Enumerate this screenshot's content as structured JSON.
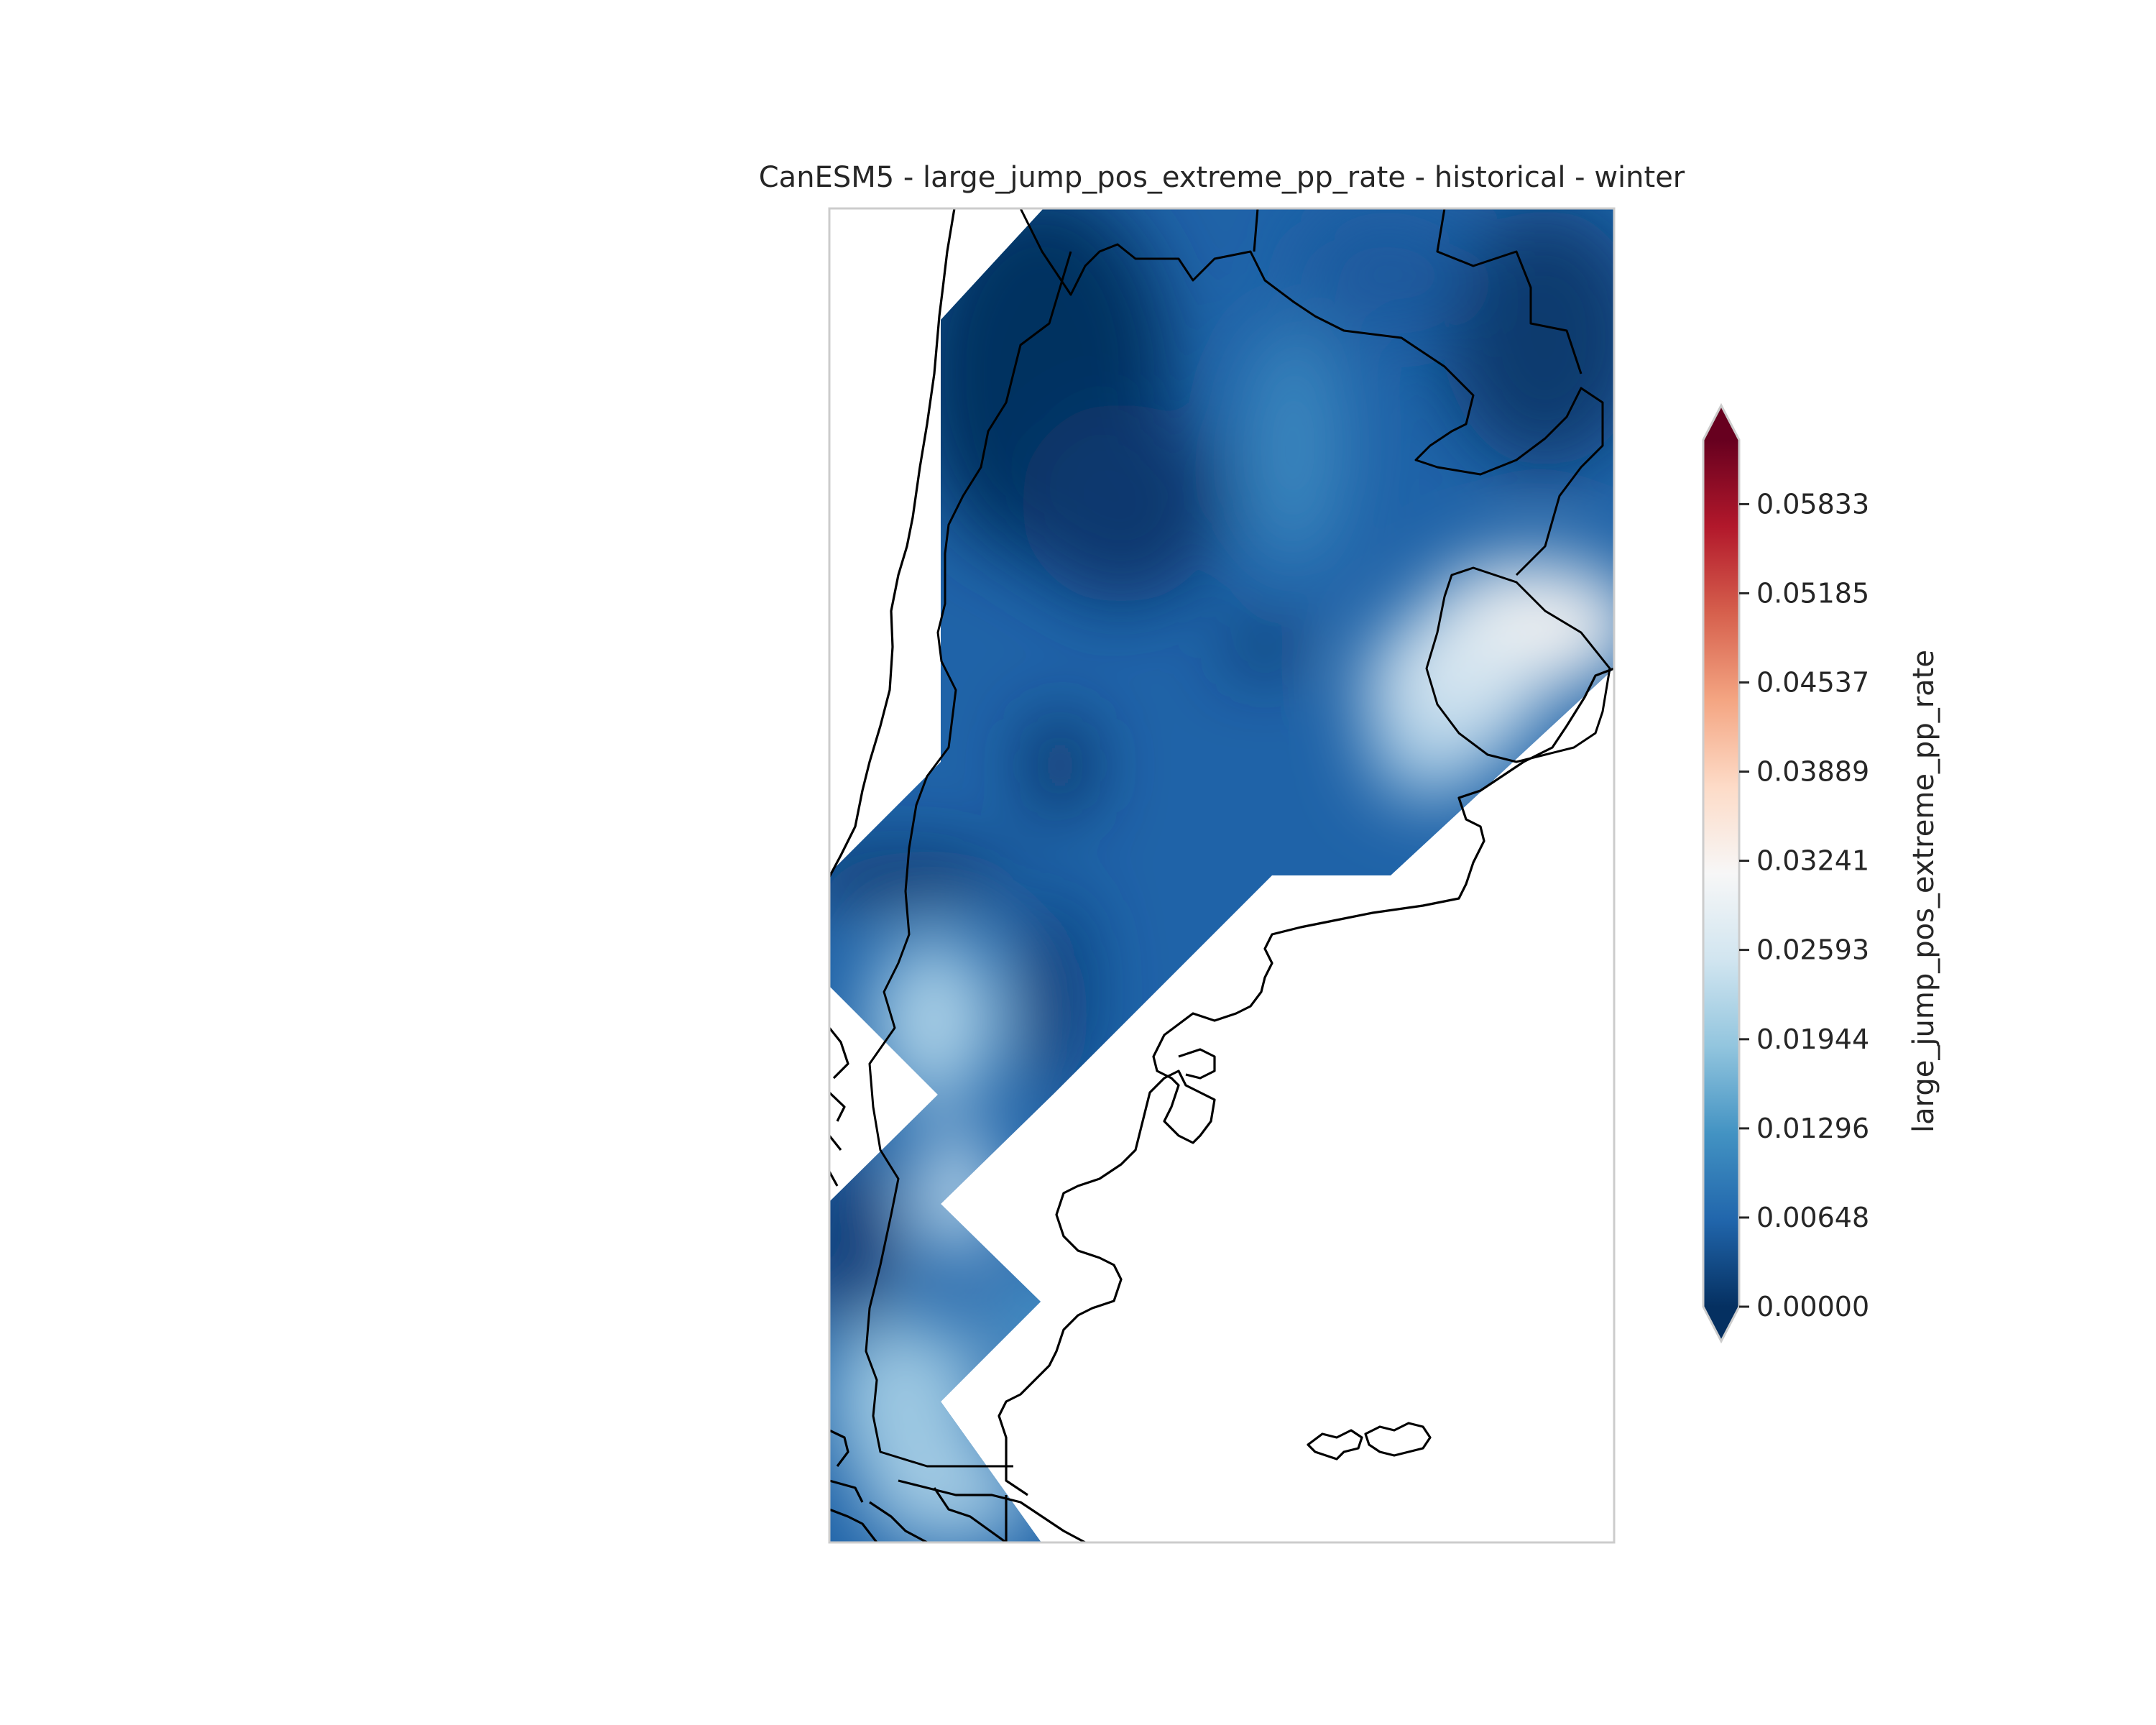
{
  "title": "CanESM5 - large_jump_pos_extreme_pp_rate - historical - winter",
  "colorbar": {
    "label": "large_jump_pos_extreme_pp_rate",
    "colormap": "RdBu_r",
    "vmin": 0.0,
    "vmax": 0.063,
    "extend": "both",
    "ticks": [
      {
        "value": 0.0,
        "label": "0.00000"
      },
      {
        "value": 0.00648,
        "label": "0.00648"
      },
      {
        "value": 0.01296,
        "label": "0.01296"
      },
      {
        "value": 0.01944,
        "label": "0.01944"
      },
      {
        "value": 0.02593,
        "label": "0.02593"
      },
      {
        "value": 0.03241,
        "label": "0.03241"
      },
      {
        "value": 0.03889,
        "label": "0.03889"
      },
      {
        "value": 0.04537,
        "label": "0.04537"
      },
      {
        "value": 0.05185,
        "label": "0.05185"
      },
      {
        "value": 0.05833,
        "label": "0.05833"
      }
    ],
    "colors": [
      "#053061",
      "#2166ac",
      "#4393c3",
      "#92c5de",
      "#d1e5f0",
      "#f7f7f7",
      "#fddbc7",
      "#f4a582",
      "#d6604d",
      "#b2182b",
      "#67001f"
    ]
  },
  "map": {
    "region": "southern South America (Argentina)",
    "field": "filled contour of large_jump_pos_extreme_pp_rate",
    "coastline_color": "#000000"
  }
}
